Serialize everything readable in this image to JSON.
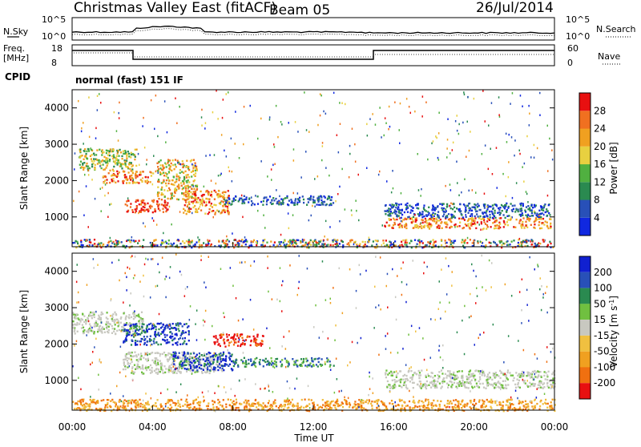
{
  "header": {
    "station": "Christmas Valley East (fitACF)",
    "beam": "Beam 05",
    "date": "26/Jul/2014"
  },
  "sky_panel": {
    "left_label": "N.Sky",
    "right_label": "N.Search",
    "ticks": [
      "10^5",
      "10^0"
    ]
  },
  "freq_panel": {
    "left_label_line1": "Freq.",
    "left_label_line2": "[MHz]",
    "left_ticks": [
      "18",
      "8"
    ],
    "right_ticks": [
      "60",
      "0"
    ],
    "right_label": "Nave"
  },
  "cpid": {
    "label": "CPID",
    "value": "normal (fast) 151 IF"
  },
  "chart_data": [
    {
      "type": "heatmap",
      "title": "",
      "ylabel": "Slant Range [km]",
      "xlabel": "",
      "x_range_hours": [
        0,
        24
      ],
      "ylim": [
        180,
        4500
      ],
      "y_ticks": [
        "1000",
        "2000",
        "3000",
        "4000"
      ],
      "colorbar": {
        "label": "Power [dB]",
        "ticks": [
          "4",
          "8",
          "12",
          "16",
          "20",
          "24",
          "28"
        ],
        "colors": [
          "#1028e0",
          "#2850b8",
          "#2a8a50",
          "#50b040",
          "#e8d040",
          "#f0a020",
          "#f07020",
          "#e81010"
        ]
      },
      "echo_regions": [
        {
          "t_start": 0.3,
          "t_end": 3.2,
          "r_low": 2300,
          "r_high": 2900,
          "level": "12-20"
        },
        {
          "t_start": 1.5,
          "t_end": 4.0,
          "r_low": 1950,
          "r_high": 2300,
          "level": "20-28"
        },
        {
          "t_start": 2.6,
          "t_end": 4.8,
          "r_low": 1150,
          "r_high": 1500,
          "level": "28"
        },
        {
          "t_start": 4.2,
          "t_end": 6.2,
          "r_low": 1500,
          "r_high": 2600,
          "level": "16-24"
        },
        {
          "t_start": 5.5,
          "t_end": 7.8,
          "r_low": 1100,
          "r_high": 1750,
          "level": "20-28"
        },
        {
          "t_start": 7.5,
          "t_end": 13.0,
          "r_low": 1350,
          "r_high": 1600,
          "level": "4-12"
        },
        {
          "t_start": 15.5,
          "t_end": 23.8,
          "r_low": 700,
          "r_high": 1000,
          "level": "20-28"
        },
        {
          "t_start": 15.5,
          "t_end": 23.8,
          "r_low": 1000,
          "r_high": 1400,
          "level": "4-12"
        },
        {
          "t_start": 0.0,
          "t_end": 24.0,
          "r_low": 180,
          "r_high": 400,
          "level": "4-28"
        }
      ]
    },
    {
      "type": "heatmap",
      "title": "",
      "ylabel": "Slant Range [km]",
      "xlabel": "Time UT",
      "x_ticks": [
        "00:00",
        "04:00",
        "08:00",
        "12:00",
        "16:00",
        "20:00",
        "00:00"
      ],
      "ylim": [
        180,
        4500
      ],
      "y_ticks": [
        "1000",
        "2000",
        "3000",
        "4000"
      ],
      "colorbar": {
        "label": "Velocity [m s^-1]",
        "ticks": [
          "200",
          "100",
          "50",
          "15",
          "-15",
          "-50",
          "-100",
          "-200"
        ],
        "colors": [
          "#1020d0",
          "#2850b8",
          "#2a8a50",
          "#70c040",
          "#c8c8c0",
          "#f0c040",
          "#f0a020",
          "#f07010",
          "#e81010"
        ]
      },
      "echo_regions": [
        {
          "t_start": 0.0,
          "t_end": 3.5,
          "r_low": 2300,
          "r_high": 2900,
          "level": "-15..15"
        },
        {
          "t_start": 2.5,
          "t_end": 5.8,
          "r_low": 2000,
          "r_high": 2600,
          "level": "100..200"
        },
        {
          "t_start": 2.5,
          "t_end": 7.5,
          "r_low": 1200,
          "r_high": 1800,
          "level": "-15..15"
        },
        {
          "t_start": 5.0,
          "t_end": 8.0,
          "r_low": 1300,
          "r_high": 1800,
          "level": "100..200"
        },
        {
          "t_start": 7.0,
          "t_end": 9.5,
          "r_low": 1950,
          "r_high": 2300,
          "level": "-200"
        },
        {
          "t_start": 8.0,
          "t_end": 13.0,
          "r_low": 1400,
          "r_high": 1650,
          "level": "15..50"
        },
        {
          "t_start": 15.5,
          "t_end": 24.0,
          "r_low": 800,
          "r_high": 1300,
          "level": "-15..15"
        },
        {
          "t_start": 0.0,
          "t_end": 24.0,
          "r_low": 180,
          "r_high": 500,
          "level": "-50..-100"
        }
      ]
    }
  ]
}
